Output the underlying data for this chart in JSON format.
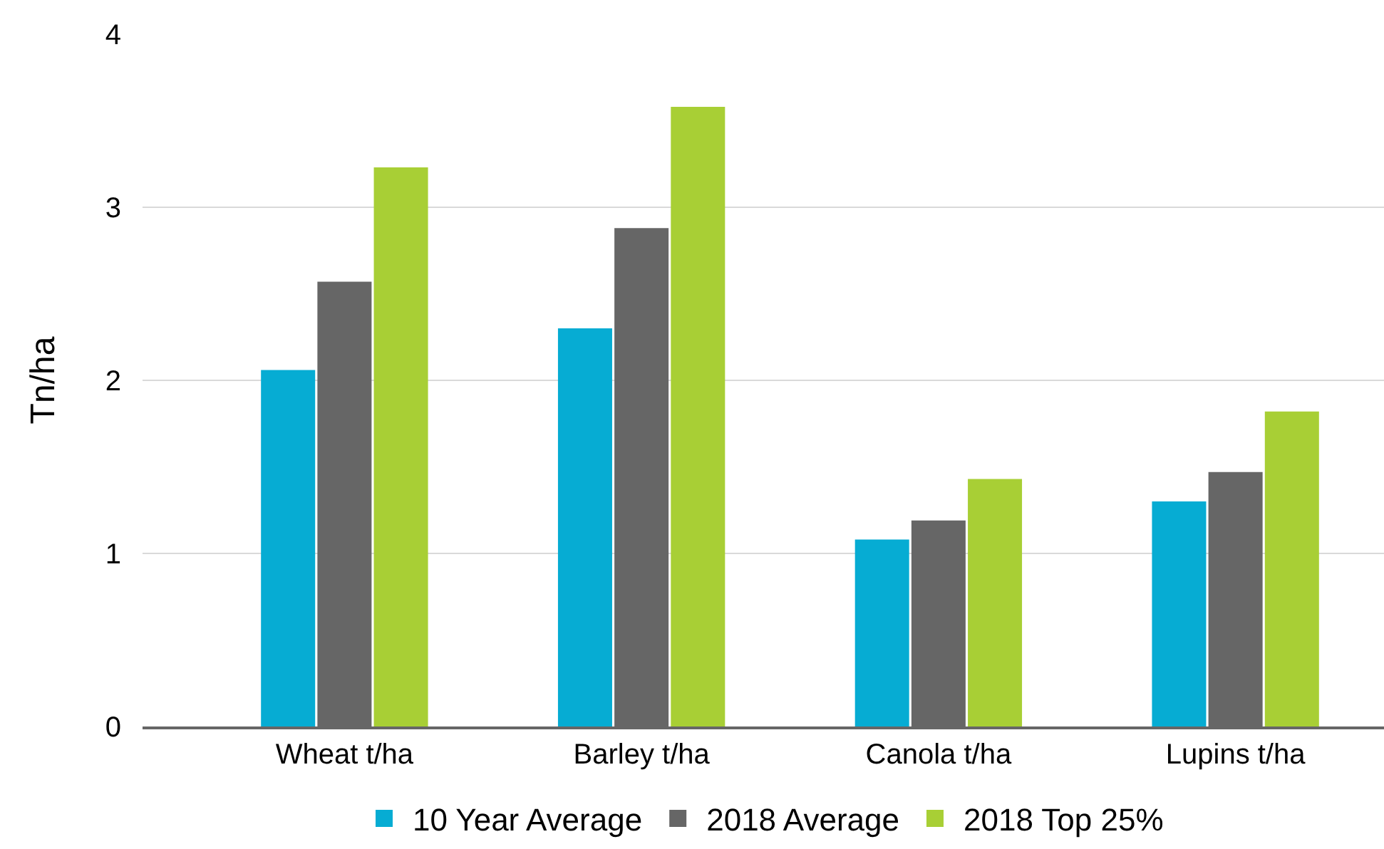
{
  "chart_data": {
    "type": "bar",
    "ylabel": "Tn/ha",
    "categories": [
      "Wheat t/ha",
      "Barley t/ha",
      "Canola t/ha",
      "Lupins t/ha"
    ],
    "series": [
      {
        "name": "10 Year Average",
        "color": "#06acd3",
        "values": [
          2.06,
          2.3,
          1.08,
          1.3
        ]
      },
      {
        "name": "2018 Average",
        "color": "#666666",
        "values": [
          2.57,
          2.88,
          1.19,
          1.47
        ]
      },
      {
        "name": "2018 Top 25%",
        "color": "#a8cf35",
        "values": [
          3.23,
          3.58,
          1.43,
          1.82
        ]
      }
    ],
    "ylim": [
      0,
      4
    ],
    "yticks": [
      0,
      1,
      2,
      3,
      4
    ],
    "grid": "y",
    "legend": "bottom"
  }
}
